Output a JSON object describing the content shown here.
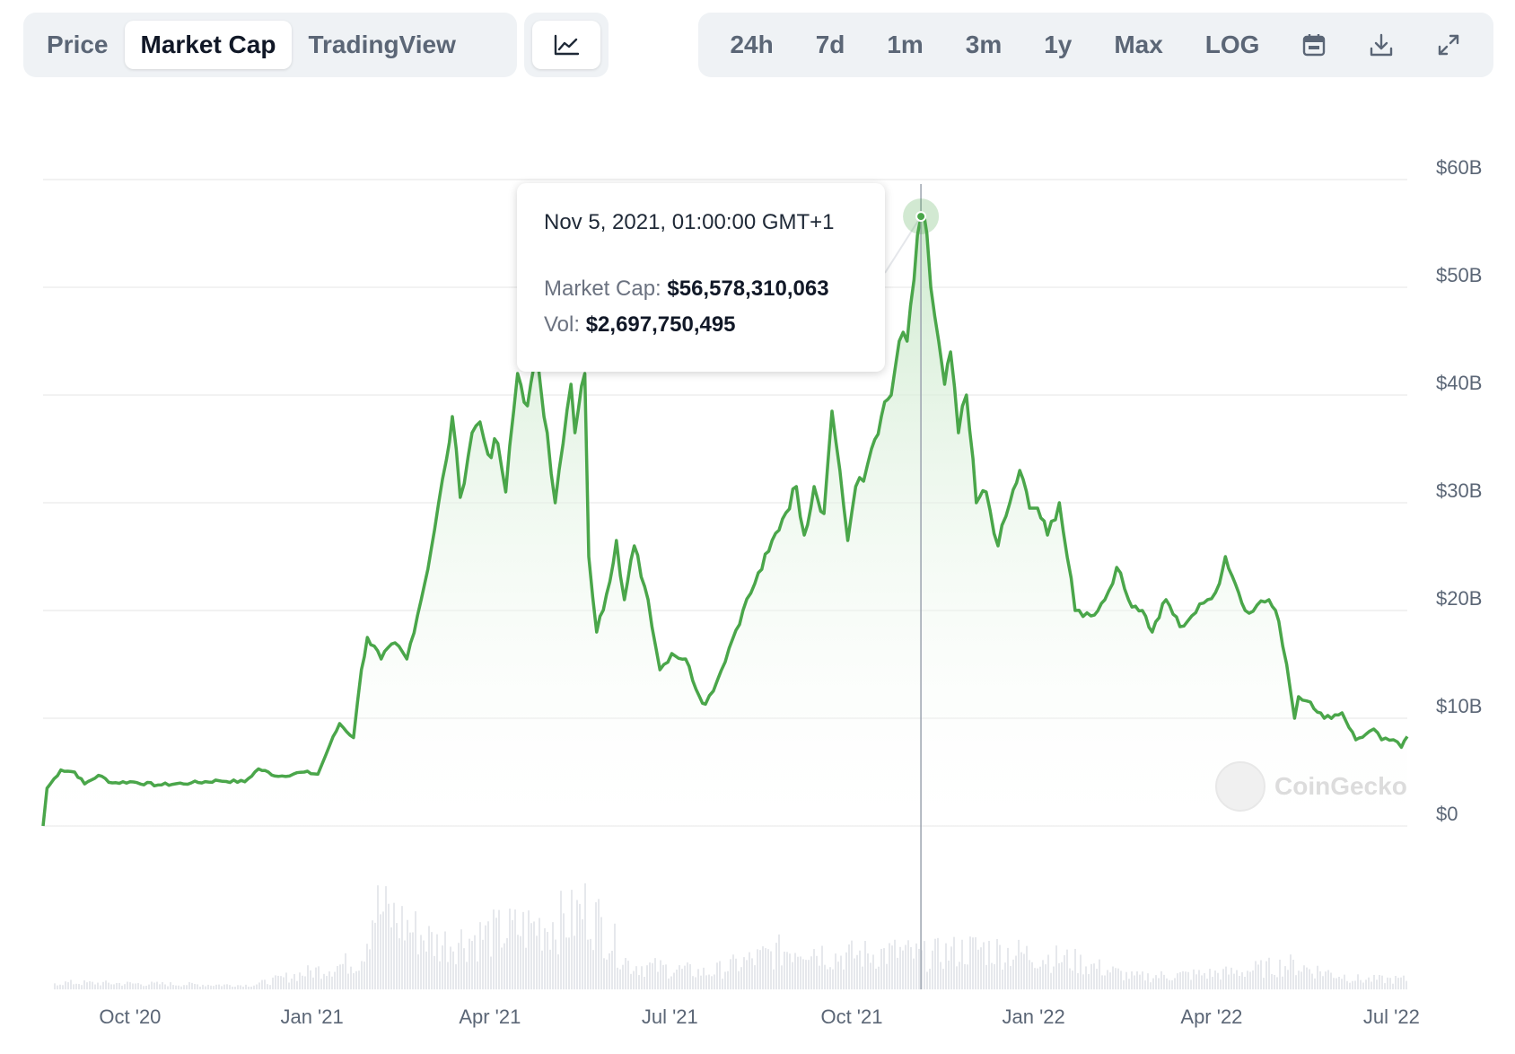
{
  "toolbar": {
    "tabs": [
      "Price",
      "Market Cap",
      "TradingView"
    ],
    "active_tab": "Market Cap",
    "ranges": [
      "24h",
      "7d",
      "1m",
      "3m",
      "1y",
      "Max",
      "LOG"
    ],
    "icons": [
      "line-chart-icon",
      "calendar-icon",
      "download-icon",
      "expand-icon"
    ]
  },
  "tooltip": {
    "date": "Nov 5, 2021, 01:00:00 GMT+1",
    "market_cap_label": "Market Cap:",
    "market_cap_value": "$56,578,310,063",
    "vol_label": "Vol:",
    "vol_value": "$2,697,750,495"
  },
  "watermark": "CoinGecko",
  "colors": {
    "line": "#4aa64a",
    "fill_top": "#c9e8c9",
    "grid": "#eeeeee",
    "volume": "#e6e8ec"
  },
  "chart_data": {
    "type": "area",
    "title": "",
    "xlabel": "",
    "ylabel": "",
    "y_tick_labels": [
      "$60B",
      "$50B",
      "$40B",
      "$30B",
      "$20B",
      "$10B",
      "$0"
    ],
    "y_ticks": [
      60,
      50,
      40,
      30,
      20,
      10,
      0
    ],
    "ylim": [
      0,
      60
    ],
    "x_tick_labels": [
      "Oct '20",
      "Jan '21",
      "Apr '21",
      "Jul '21",
      "Oct '21",
      "Jan '22",
      "Apr '22",
      "Jul '22"
    ],
    "x_tick_dates": [
      "2020-10-01",
      "2021-01-01",
      "2021-04-01",
      "2021-07-01",
      "2021-10-01",
      "2022-01-01",
      "2022-04-01",
      "2022-07-01"
    ],
    "grid": true,
    "series": [
      {
        "name": "Market Cap",
        "unit": "USD billions",
        "points": [
          [
            "2020-08-18",
            0
          ],
          [
            "2020-08-20",
            3.5
          ],
          [
            "2020-08-27",
            5.2
          ],
          [
            "2020-09-03",
            5.0
          ],
          [
            "2020-09-08",
            3.9
          ],
          [
            "2020-09-15",
            4.7
          ],
          [
            "2020-09-22",
            4.0
          ],
          [
            "2020-10-01",
            4.1
          ],
          [
            "2020-10-15",
            3.8
          ],
          [
            "2020-11-01",
            4.0
          ],
          [
            "2020-11-15",
            4.2
          ],
          [
            "2020-11-28",
            4.1
          ],
          [
            "2020-12-05",
            5.3
          ],
          [
            "2020-12-15",
            4.6
          ],
          [
            "2020-12-28",
            5.0
          ],
          [
            "2021-01-04",
            4.8
          ],
          [
            "2021-01-10",
            7.5
          ],
          [
            "2021-01-15",
            9.5
          ],
          [
            "2021-01-22",
            8.2
          ],
          [
            "2021-01-26",
            14.5
          ],
          [
            "2021-01-29",
            17.5
          ],
          [
            "2021-02-05",
            15.5
          ],
          [
            "2021-02-12",
            17.0
          ],
          [
            "2021-02-18",
            15.5
          ],
          [
            "2021-02-27",
            22.5
          ],
          [
            "2021-03-04",
            27.5
          ],
          [
            "2021-03-10",
            34.0
          ],
          [
            "2021-03-13",
            38.0
          ],
          [
            "2021-03-17",
            30.5
          ],
          [
            "2021-03-23",
            36.5
          ],
          [
            "2021-03-27",
            37.5
          ],
          [
            "2021-03-31",
            34.5
          ],
          [
            "2021-04-05",
            35.5
          ],
          [
            "2021-04-09",
            31.0
          ],
          [
            "2021-04-15",
            42.0
          ],
          [
            "2021-04-20",
            39.0
          ],
          [
            "2021-04-25",
            43.5
          ],
          [
            "2021-04-30",
            36.5
          ],
          [
            "2021-05-04",
            30.0
          ],
          [
            "2021-05-08",
            35.5
          ],
          [
            "2021-05-12",
            41.0
          ],
          [
            "2021-05-14",
            36.5
          ],
          [
            "2021-05-19",
            42.0
          ],
          [
            "2021-05-21",
            25.0
          ],
          [
            "2021-05-25",
            18.0
          ],
          [
            "2021-05-30",
            21.5
          ],
          [
            "2021-06-04",
            26.5
          ],
          [
            "2021-06-08",
            21.0
          ],
          [
            "2021-06-13",
            26.0
          ],
          [
            "2021-06-20",
            21.0
          ],
          [
            "2021-06-26",
            14.5
          ],
          [
            "2021-07-02",
            16.0
          ],
          [
            "2021-07-09",
            15.5
          ],
          [
            "2021-07-16",
            12.0
          ],
          [
            "2021-07-19",
            11.3
          ],
          [
            "2021-07-25",
            13.5
          ],
          [
            "2021-07-31",
            16.5
          ],
          [
            "2021-08-07",
            20.0
          ],
          [
            "2021-08-13",
            22.5
          ],
          [
            "2021-08-20",
            25.5
          ],
          [
            "2021-08-27",
            28.5
          ],
          [
            "2021-09-03",
            31.5
          ],
          [
            "2021-09-07",
            27.0
          ],
          [
            "2021-09-12",
            31.5
          ],
          [
            "2021-09-17",
            29.0
          ],
          [
            "2021-09-21",
            38.5
          ],
          [
            "2021-09-25",
            33.0
          ],
          [
            "2021-09-29",
            26.5
          ],
          [
            "2021-10-03",
            31.5
          ],
          [
            "2021-10-07",
            32.0
          ],
          [
            "2021-10-11",
            35.0
          ],
          [
            "2021-10-16",
            38.0
          ],
          [
            "2021-10-21",
            40.0
          ],
          [
            "2021-10-25",
            45.0
          ],
          [
            "2021-10-29",
            45.0
          ],
          [
            "2021-11-05",
            56.6
          ],
          [
            "2021-11-08",
            55.0
          ],
          [
            "2021-11-10",
            50.0
          ],
          [
            "2021-11-14",
            45.0
          ],
          [
            "2021-11-17",
            41.0
          ],
          [
            "2021-11-20",
            44.0
          ],
          [
            "2021-11-24",
            36.5
          ],
          [
            "2021-11-28",
            40.0
          ],
          [
            "2021-12-03",
            30.0
          ],
          [
            "2021-12-08",
            31.0
          ],
          [
            "2021-12-14",
            26.0
          ],
          [
            "2021-12-20",
            30.0
          ],
          [
            "2021-12-25",
            33.0
          ],
          [
            "2021-12-30",
            29.5
          ],
          [
            "2022-01-03",
            29.5
          ],
          [
            "2022-01-08",
            27.0
          ],
          [
            "2022-01-14",
            30.0
          ],
          [
            "2022-01-22",
            20.0
          ],
          [
            "2022-01-30",
            19.5
          ],
          [
            "2022-02-06",
            21.0
          ],
          [
            "2022-02-12",
            24.0
          ],
          [
            "2022-02-18",
            21.0
          ],
          [
            "2022-02-25",
            20.0
          ],
          [
            "2022-03-02",
            18.0
          ],
          [
            "2022-03-09",
            21.0
          ],
          [
            "2022-03-16",
            18.5
          ],
          [
            "2022-03-22",
            19.5
          ],
          [
            "2022-03-30",
            21.0
          ],
          [
            "2022-04-05",
            22.5
          ],
          [
            "2022-04-08",
            25.0
          ],
          [
            "2022-04-13",
            22.5
          ],
          [
            "2022-04-18",
            20.0
          ],
          [
            "2022-04-24",
            20.5
          ],
          [
            "2022-04-30",
            21.0
          ],
          [
            "2022-05-05",
            19.0
          ],
          [
            "2022-05-09",
            15.0
          ],
          [
            "2022-05-13",
            10.0
          ],
          [
            "2022-05-15",
            12.0
          ],
          [
            "2022-05-21",
            11.5
          ],
          [
            "2022-05-28",
            10.0
          ],
          [
            "2022-06-06",
            10.5
          ],
          [
            "2022-06-13",
            8.0
          ],
          [
            "2022-06-18",
            8.5
          ],
          [
            "2022-06-22",
            9.0
          ],
          [
            "2022-06-26",
            8.0
          ],
          [
            "2022-07-02",
            8.0
          ],
          [
            "2022-07-06",
            7.3
          ],
          [
            "2022-07-09",
            8.3
          ]
        ]
      }
    ],
    "volume_series": {
      "name": "Volume",
      "points": [
        [
          "2020-09-01",
          0.08
        ],
        [
          "2020-12-01",
          0.05
        ],
        [
          "2021-01-25",
          0.35
        ],
        [
          "2021-02-01",
          1.0
        ],
        [
          "2021-03-05",
          0.55
        ],
        [
          "2021-04-20",
          0.75
        ],
        [
          "2021-05-12",
          0.85
        ],
        [
          "2021-05-20",
          1.0
        ],
        [
          "2021-06-10",
          0.3
        ],
        [
          "2021-07-20",
          0.2
        ],
        [
          "2021-09-07",
          0.55
        ],
        [
          "2021-09-20",
          0.4
        ],
        [
          "2021-10-25",
          0.45
        ],
        [
          "2021-11-05",
          0.4
        ],
        [
          "2021-12-04",
          0.5
        ],
        [
          "2022-01-20",
          0.35
        ],
        [
          "2022-02-20",
          0.15
        ],
        [
          "2022-04-10",
          0.2
        ],
        [
          "2022-05-10",
          0.3
        ],
        [
          "2022-06-15",
          0.12
        ]
      ]
    },
    "tooltip_point": [
      "2021-11-05",
      56.578
    ],
    "crosshair_date": "2021-11-05"
  }
}
